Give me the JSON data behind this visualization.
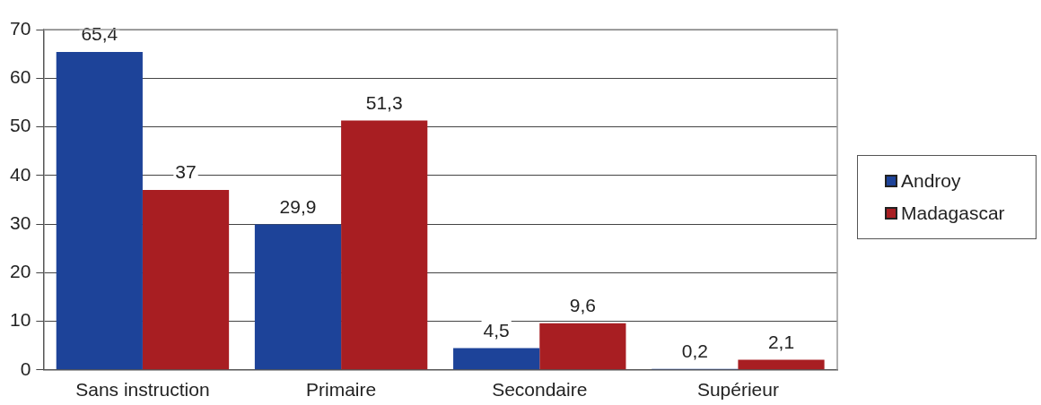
{
  "chart_data": {
    "type": "bar",
    "categories": [
      "Sans instruction",
      "Primaire",
      "Secondaire",
      "Supérieur"
    ],
    "series": [
      {
        "name": "Androy",
        "color": "#1d4399",
        "values": [
          65.4,
          29.9,
          4.5,
          0.2
        ],
        "value_labels": [
          "65,4",
          "29,9",
          "4,5",
          "0,2"
        ]
      },
      {
        "name": "Madagascar",
        "color": "#a81e22",
        "values": [
          37,
          51.3,
          9.6,
          2.1
        ],
        "value_labels": [
          "37",
          "51,3",
          "9,6",
          "2,1"
        ]
      }
    ],
    "ylim": [
      0,
      70
    ],
    "yticks": [
      0,
      10,
      20,
      30,
      40,
      50,
      60,
      70
    ],
    "grid": "y",
    "legend": "right"
  }
}
